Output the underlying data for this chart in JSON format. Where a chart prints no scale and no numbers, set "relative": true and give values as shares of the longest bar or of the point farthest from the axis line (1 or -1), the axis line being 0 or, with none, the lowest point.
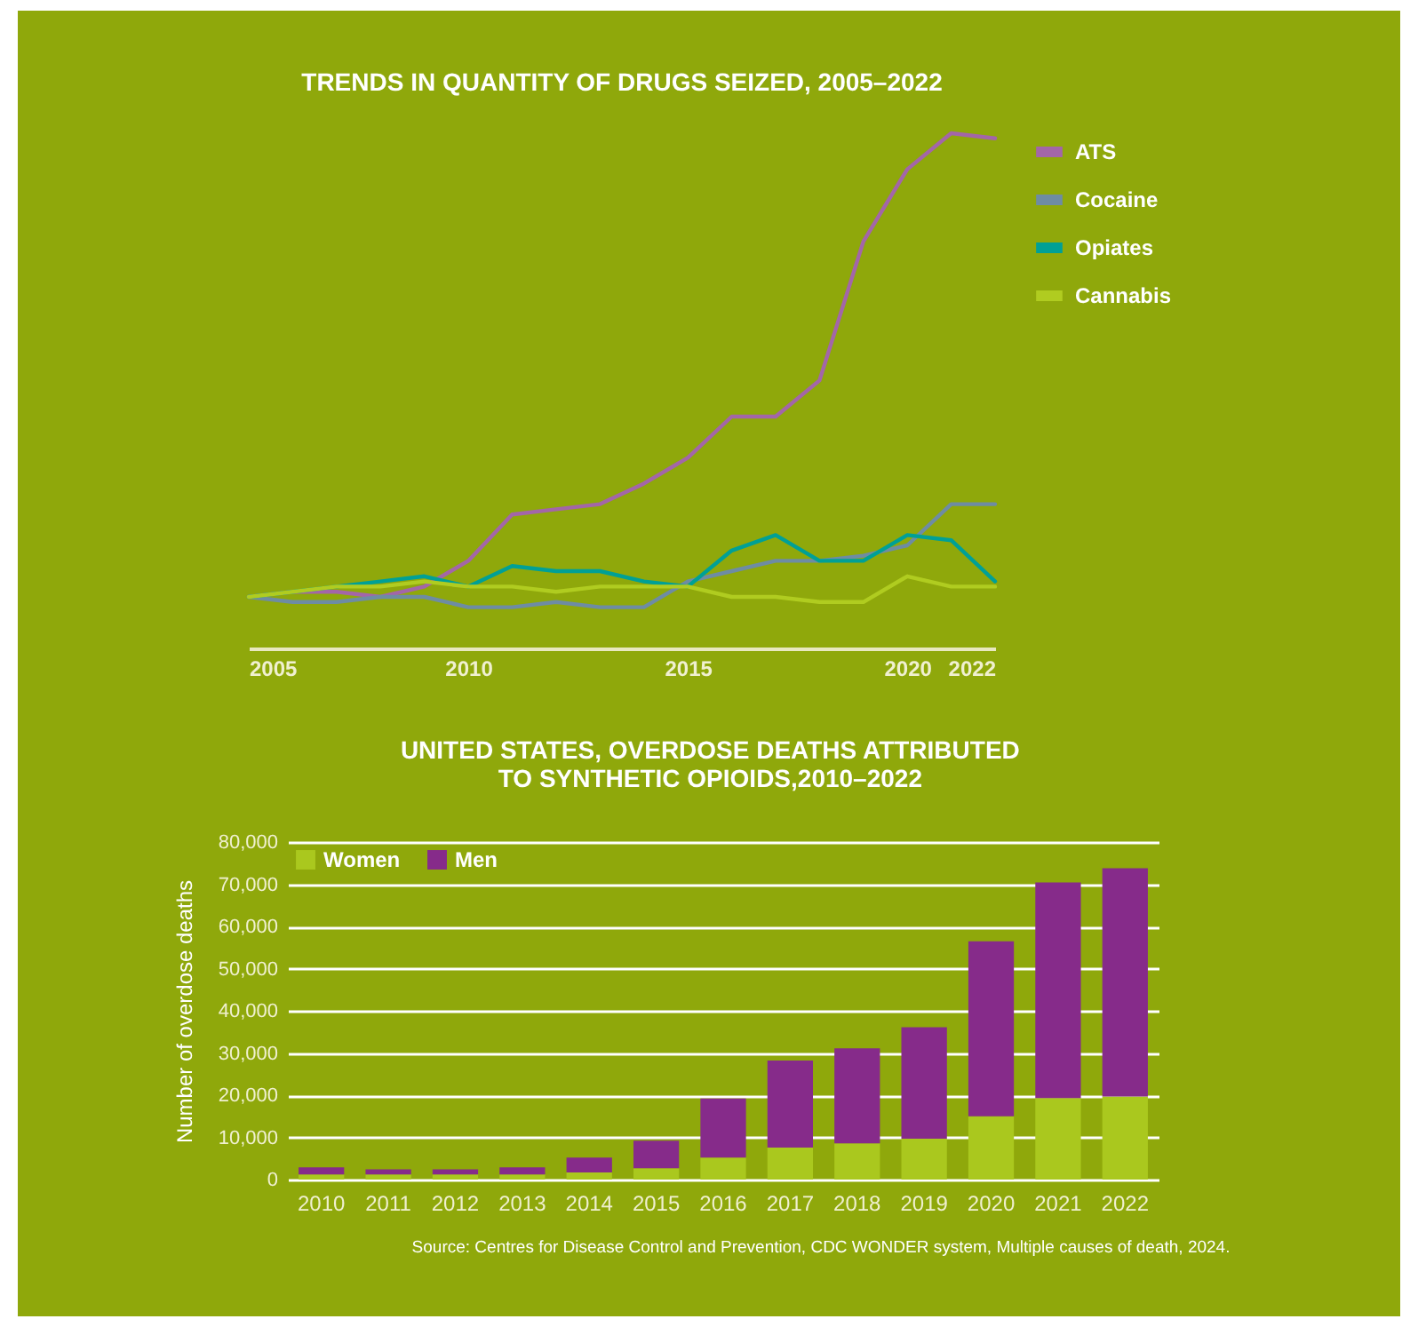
{
  "chart_data": [
    {
      "type": "line",
      "title": "TRENDS IN QUANTITY OF DRUGS SEIZED, 2005–2022",
      "relative": true,
      "legend": "right",
      "x": [
        2005,
        2006,
        2007,
        2008,
        2009,
        2010,
        2011,
        2012,
        2013,
        2014,
        2015,
        2016,
        2017,
        2018,
        2019,
        2020,
        2021,
        2022
      ],
      "xlim": [
        2005,
        2022
      ],
      "xticks": [
        2005,
        2010,
        2015,
        2020,
        2022
      ],
      "series": [
        {
          "name": "ATS",
          "color": "#a366a8",
          "values": [
            0.1,
            0.11,
            0.11,
            0.1,
            0.12,
            0.17,
            0.26,
            0.27,
            0.28,
            0.32,
            0.37,
            0.45,
            0.45,
            0.52,
            0.79,
            0.93,
            1.0,
            0.99
          ]
        },
        {
          "name": "Cocaine",
          "color": "#6e8ca3",
          "values": [
            0.1,
            0.09,
            0.09,
            0.1,
            0.1,
            0.08,
            0.08,
            0.09,
            0.08,
            0.08,
            0.13,
            0.15,
            0.17,
            0.17,
            0.18,
            0.2,
            0.28,
            0.28
          ]
        },
        {
          "name": "Opiates",
          "color": "#00a096",
          "values": [
            0.1,
            0.11,
            0.12,
            0.13,
            0.14,
            0.12,
            0.16,
            0.15,
            0.15,
            0.13,
            0.12,
            0.19,
            0.22,
            0.17,
            0.17,
            0.22,
            0.21,
            0.13
          ]
        },
        {
          "name": "Cannabis",
          "color": "#b0cc20",
          "values": [
            0.1,
            0.11,
            0.12,
            0.12,
            0.13,
            0.12,
            0.12,
            0.11,
            0.12,
            0.12,
            0.12,
            0.1,
            0.1,
            0.09,
            0.09,
            0.14,
            0.12,
            0.12
          ]
        }
      ]
    },
    {
      "type": "bar",
      "title": "UNITED STATES, OVERDOSE DEATHS ATTRIBUTED TO SYNTHETIC OPIOIDS,2010–2022",
      "ylabel": "Number of overdose deaths",
      "stacked": true,
      "legend": "top left",
      "grid": "y",
      "categories": [
        "2010",
        "2011",
        "2012",
        "2013",
        "2014",
        "2015",
        "2016",
        "2017",
        "2018",
        "2019",
        "2020",
        "2021",
        "2022"
      ],
      "ylim": [
        0,
        80000
      ],
      "yticks": [
        0,
        {
          "value": 10000,
          "label": "10,000"
        },
        {
          "value": 20000,
          "label": "20,000"
        },
        {
          "value": 30000,
          "label": "30,000"
        },
        {
          "value": 40000,
          "label": "40,000"
        },
        {
          "value": 50000,
          "label": "50,000"
        },
        {
          "value": 60000,
          "label": "60,000"
        },
        {
          "value": 70000,
          "label": "70,000"
        },
        {
          "value": 80000,
          "label": "80,000"
        }
      ],
      "series": [
        {
          "name": "Women",
          "color": "#aac81e",
          "values": [
            1200,
            1200,
            1200,
            1200,
            1700,
            2700,
            5200,
            7600,
            8600,
            9700,
            15000,
            19300,
            19700
          ]
        },
        {
          "name": "Men",
          "color": "#862b8a",
          "values": [
            1700,
            1200,
            1200,
            1700,
            3500,
            6500,
            14000,
            20600,
            22500,
            26400,
            41500,
            51100,
            54100
          ]
        }
      ],
      "annotations": [
        "Source: Centres for Disease Control and Prevention, CDC WONDER system, Multiple causes of death, 2024."
      ]
    }
  ]
}
